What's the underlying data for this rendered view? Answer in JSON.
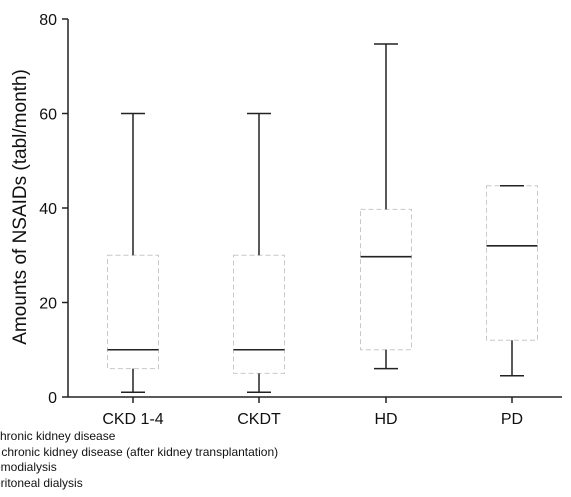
{
  "chart_data": {
    "type": "box",
    "categories": [
      "CKD 1-4",
      "CKDT",
      "HD",
      "PD"
    ],
    "series": [
      {
        "boxes": [
          {
            "min": 1,
            "q1": 6,
            "median": 10,
            "q3": 30,
            "max": 60
          },
          {
            "min": 1,
            "q1": 5,
            "median": 10,
            "q3": 30,
            "max": 60
          },
          {
            "min": 6,
            "q1": 10,
            "median": 29.7,
            "q3": 39.7,
            "max": 74.7
          },
          {
            "min": 4.5,
            "q1": 12,
            "median": 32,
            "q3": 44.7,
            "max": 44.7
          }
        ]
      }
    ],
    "title": "",
    "xlabel": "",
    "ylabel": "Amounts of NSAIDs (tabl/month)",
    "ylim": [
      0,
      80
    ],
    "yticks": [
      "0",
      "20",
      "40",
      "60",
      "80"
    ],
    "grid": false,
    "colors": {
      "axis": "#222222",
      "box_edge": "#c8c8c8",
      "whisker": "#222222",
      "median": "#222222"
    }
  },
  "footnotes": [
    "chronic kidney disease",
    "- chronic kidney disease (after kidney transplantation)",
    "emodialysis",
    "eritoneal dialysis"
  ]
}
